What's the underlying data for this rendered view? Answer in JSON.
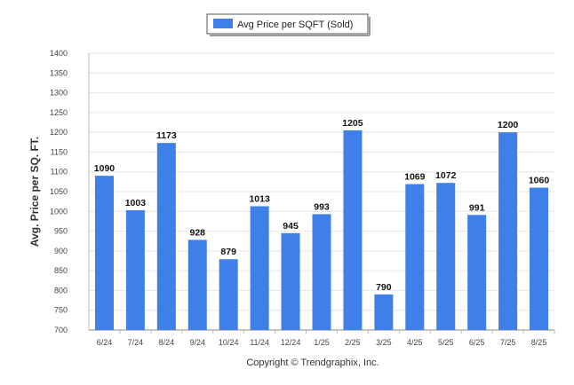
{
  "chart_data": {
    "type": "bar",
    "categories": [
      "6/24",
      "7/24",
      "8/24",
      "9/24",
      "10/24",
      "11/24",
      "12/24",
      "1/25",
      "2/25",
      "3/25",
      "4/25",
      "5/25",
      "6/25",
      "7/25",
      "8/25"
    ],
    "series": [
      {
        "name": "Avg Price per SQFT (Sold)",
        "values": [
          1090,
          1003,
          1173,
          928,
          879,
          1013,
          945,
          993,
          1205,
          790,
          1069,
          1072,
          991,
          1200,
          1060
        ],
        "color": "#3f7fe8"
      }
    ],
    "ylabel": "Avg. Price per SQ. FT.",
    "xlabel": "",
    "ylim": [
      700,
      1400
    ],
    "yticks": [
      700,
      750,
      800,
      850,
      900,
      950,
      1000,
      1050,
      1100,
      1150,
      1200,
      1250,
      1300,
      1350,
      1400
    ],
    "grid": true,
    "legend_position": "top-center",
    "data_labels": true
  },
  "footer": {
    "copyright": "Copyright © Trendgraphix, Inc."
  }
}
